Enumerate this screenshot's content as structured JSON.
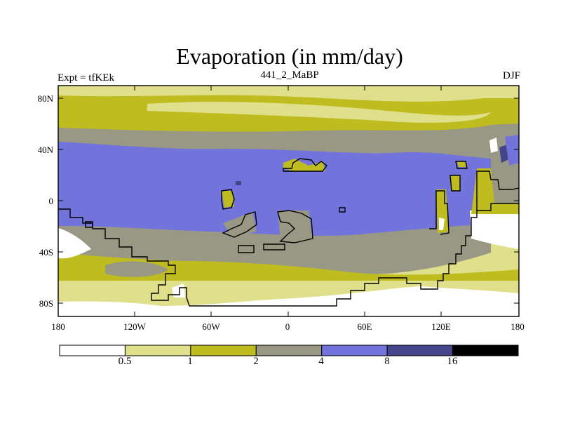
{
  "title": "Evaporation (in mm/day)",
  "subtitle_left": "Expt = tfKEk",
  "subtitle_center": "441_2_MaBP",
  "subtitle_right": "DJF",
  "axes": {
    "lat_labels": [
      "80N",
      "40N",
      "0",
      "40S",
      "80S"
    ],
    "lon_labels": [
      "180",
      "120W",
      "60W",
      "0",
      "60E",
      "120E",
      "180"
    ]
  },
  "colorbar": {
    "labels": [
      "0.5",
      "1",
      "2",
      "4",
      "8",
      "16"
    ],
    "colors": [
      "#ffffff",
      "#e0df8c",
      "#bebc1f",
      "#999885",
      "#7373dc",
      "#45458c",
      "#000000"
    ]
  },
  "colors": {
    "white": "#ffffff",
    "light_yellow": "#e0df8c",
    "olive": "#bebc1f",
    "gray": "#999885",
    "blue": "#7373dc",
    "dark_blue": "#45458c",
    "black": "#000000"
  }
}
